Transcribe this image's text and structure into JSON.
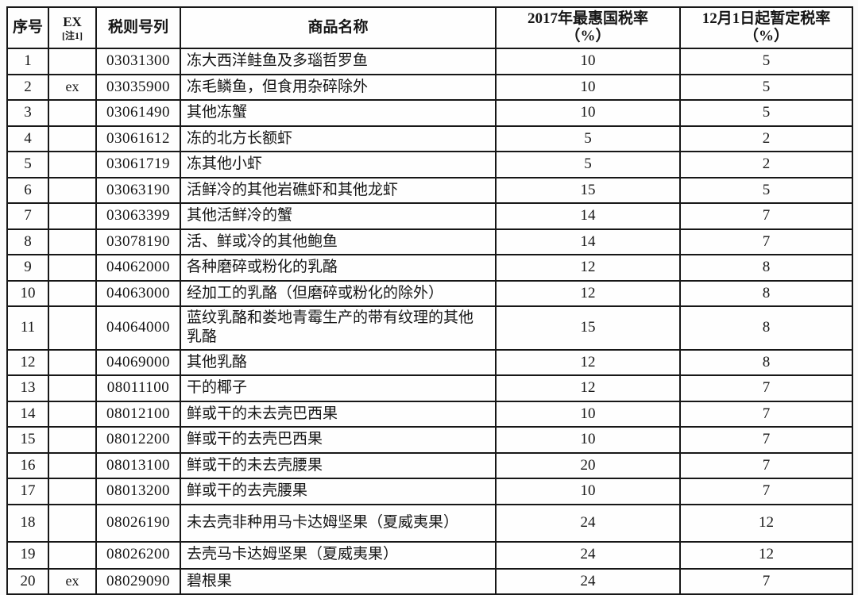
{
  "table": {
    "columns": [
      {
        "key": "no",
        "label": "序号",
        "sub": ""
      },
      {
        "key": "ex",
        "label": "EX",
        "sub": "[注1]"
      },
      {
        "key": "code",
        "label": "税则号列",
        "sub": ""
      },
      {
        "key": "name",
        "label": "商品名称",
        "sub": ""
      },
      {
        "key": "mfn",
        "label": "2017年最惠国税率",
        "sub": "（%）"
      },
      {
        "key": "temp",
        "label": "12月1日起暂定税率",
        "sub": "（%）"
      }
    ],
    "rows": [
      {
        "no": "1",
        "ex": "",
        "code": "03031300",
        "name": "冻大西洋鲑鱼及多瑙哲罗鱼",
        "mfn": "10",
        "temp": "5"
      },
      {
        "no": "2",
        "ex": "ex",
        "code": "03035900",
        "name": "冻毛鳞鱼，但食用杂碎除外",
        "mfn": "10",
        "temp": "5"
      },
      {
        "no": "3",
        "ex": "",
        "code": "03061490",
        "name": "其他冻蟹",
        "mfn": "10",
        "temp": "5"
      },
      {
        "no": "4",
        "ex": "",
        "code": "03061612",
        "name": "冻的北方长额虾",
        "mfn": "5",
        "temp": "2"
      },
      {
        "no": "5",
        "ex": "",
        "code": "03061719",
        "name": "冻其他小虾",
        "mfn": "5",
        "temp": "2"
      },
      {
        "no": "6",
        "ex": "",
        "code": "03063190",
        "name": "活鲜冷的其他岩礁虾和其他龙虾",
        "mfn": "15",
        "temp": "5"
      },
      {
        "no": "7",
        "ex": "",
        "code": "03063399",
        "name": "其他活鲜冷的蟹",
        "mfn": "14",
        "temp": "7"
      },
      {
        "no": "8",
        "ex": "",
        "code": "03078190",
        "name": "活、鲜或冷的其他鲍鱼",
        "mfn": "14",
        "temp": "7"
      },
      {
        "no": "9",
        "ex": "",
        "code": "04062000",
        "name": "各种磨碎或粉化的乳酪",
        "mfn": "12",
        "temp": "8"
      },
      {
        "no": "10",
        "ex": "",
        "code": "04063000",
        "name": "经加工的乳酪（但磨碎或粉化的除外）",
        "mfn": "12",
        "temp": "8"
      },
      {
        "no": "11",
        "ex": "",
        "code": "04064000",
        "name": "蓝纹乳酪和娄地青霉生产的带有纹理的其他乳酪",
        "mfn": "15",
        "temp": "8"
      },
      {
        "no": "12",
        "ex": "",
        "code": "04069000",
        "name": "其他乳酪",
        "mfn": "12",
        "temp": "8"
      },
      {
        "no": "13",
        "ex": "",
        "code": "08011100",
        "name": "干的椰子",
        "mfn": "12",
        "temp": "7"
      },
      {
        "no": "14",
        "ex": "",
        "code": "08012100",
        "name": "鲜或干的未去壳巴西果",
        "mfn": "10",
        "temp": "7"
      },
      {
        "no": "15",
        "ex": "",
        "code": "08012200",
        "name": "鲜或干的去壳巴西果",
        "mfn": "10",
        "temp": "7"
      },
      {
        "no": "16",
        "ex": "",
        "code": "08013100",
        "name": "鲜或干的未去壳腰果",
        "mfn": "20",
        "temp": "7"
      },
      {
        "no": "17",
        "ex": "",
        "code": "08013200",
        "name": "鲜或干的去壳腰果",
        "mfn": "10",
        "temp": "7"
      },
      {
        "no": "18",
        "ex": "",
        "code": "08026190",
        "name": "未去壳非种用马卡达姆坚果（夏威夷果）",
        "mfn": "24",
        "temp": "12"
      },
      {
        "no": "19",
        "ex": "",
        "code": "08026200",
        "name": "去壳马卡达姆坚果（夏威夷果）",
        "mfn": "24",
        "temp": "12"
      },
      {
        "no": "20",
        "ex": "ex",
        "code": "08029090",
        "name": "碧根果",
        "mfn": "24",
        "temp": "7"
      }
    ]
  },
  "colors": {
    "border": "#171717",
    "background": "#fbfbfb",
    "cell_background": "#fefefe",
    "text": "#161616"
  }
}
